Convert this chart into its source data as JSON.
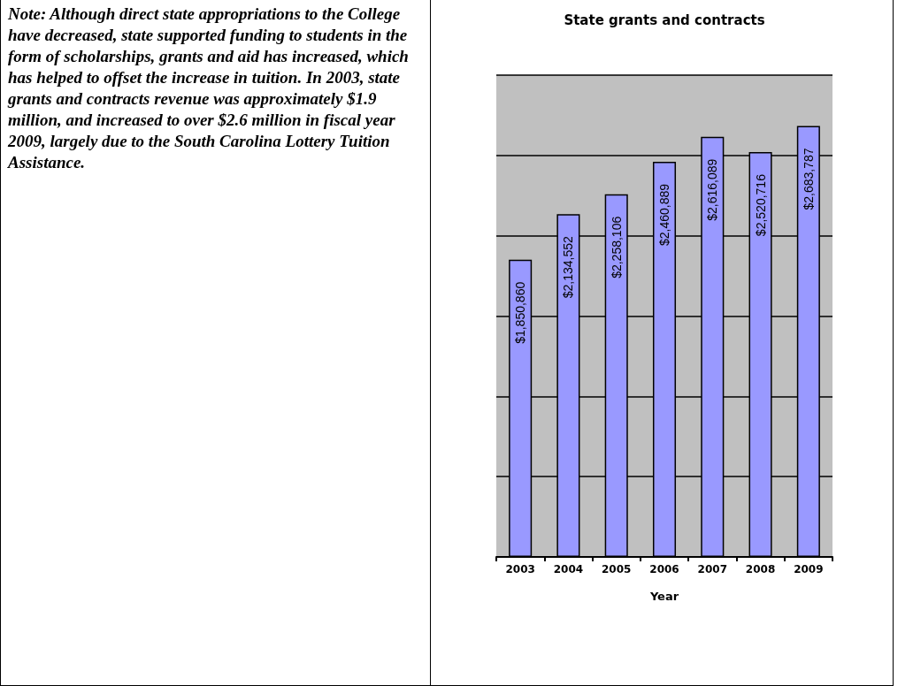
{
  "chart_data": {
    "type": "bar",
    "title": "State grants and contracts",
    "xlabel": "Year",
    "categories": [
      "2003",
      "2004",
      "2005",
      "2006",
      "2007",
      "2008",
      "2009"
    ],
    "values": [
      1850860,
      2134552,
      2258106,
      2460889,
      2616089,
      2520716,
      2683787
    ],
    "value_labels": [
      "$1,850,860",
      "$2,134,552",
      "$2,258,106",
      "$2,460,889",
      "$2,616,089",
      "$2,520,716",
      "$2,683,787"
    ],
    "color": "#9999ff",
    "grid": "y",
    "annotations": [
      "Note: Although direct state appropriations to the College have decreased, state supported funding to students in the form of scholarships, grants and aid has increased, which has helped to offset the increase in tuition. In 2003, state grants and contracts revenue was approximately $1.9 million, and increased to over $2.6 million in fiscal year 2009, largely due to the South Carolina Lottery Tuition Assistance."
    ]
  }
}
